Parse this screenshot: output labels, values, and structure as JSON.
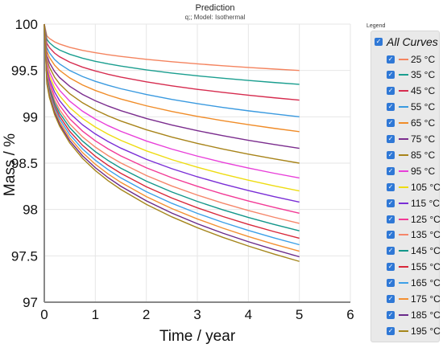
{
  "chart_data": {
    "type": "line",
    "title": "Prediction",
    "subtitle": "q;; Model: Isothermal",
    "xlabel": "Time / year",
    "ylabel": "Mass / %",
    "xlim": [
      0,
      6
    ],
    "ylim": [
      97,
      100
    ],
    "x_ticks": [
      "0",
      "1",
      "2",
      "3",
      "4",
      "5",
      "6"
    ],
    "y_ticks": [
      "97",
      "97.5",
      "98",
      "98.5",
      "99",
      "99.5",
      "100"
    ],
    "grid": true,
    "legend_position": "right",
    "x": [
      0,
      0.05,
      0.1,
      0.2,
      0.3,
      0.5,
      0.75,
      1,
      1.25,
      1.5,
      2,
      2.5,
      3,
      3.5,
      4,
      4.5,
      5
    ],
    "series": [
      {
        "name": "25 °C",
        "color": "#f4845f",
        "final": 99.5
      },
      {
        "name": "35 °C",
        "color": "#1a9e8f",
        "final": 99.35
      },
      {
        "name": "45 °C",
        "color": "#d62c4f",
        "final": 99.18
      },
      {
        "name": "55 °C",
        "color": "#3a9ae0",
        "final": 99.0
      },
      {
        "name": "65 °C",
        "color": "#f08c28",
        "final": 98.84
      },
      {
        "name": "75 °C",
        "color": "#7b2d8e",
        "final": 98.66
      },
      {
        "name": "85 °C",
        "color": "#a8841a",
        "final": 98.5
      },
      {
        "name": "95 °C",
        "color": "#e83fd9",
        "final": 98.34
      },
      {
        "name": "105 °C",
        "color": "#eedc12",
        "final": 98.2
      },
      {
        "name": "115 °C",
        "color": "#7a2ed6",
        "final": 98.08
      },
      {
        "name": "125 °C",
        "color": "#f23a96",
        "final": 97.96
      },
      {
        "name": "135 °C",
        "color": "#f5866a",
        "final": 97.85
      },
      {
        "name": "145 °C",
        "color": "#12968a",
        "final": 97.77
      },
      {
        "name": "155 °C",
        "color": "#d8283a",
        "final": 97.69
      },
      {
        "name": "165 °C",
        "color": "#3ca0e8",
        "final": 97.62
      },
      {
        "name": "175 °C",
        "color": "#f39032",
        "final": 97.55
      },
      {
        "name": "185 °C",
        "color": "#6a2a8a",
        "final": 97.49
      },
      {
        "name": "195 °C",
        "color": "#a5861c",
        "final": 97.44
      }
    ]
  },
  "legend": {
    "title": "Legend",
    "all_label": "All Curves"
  }
}
